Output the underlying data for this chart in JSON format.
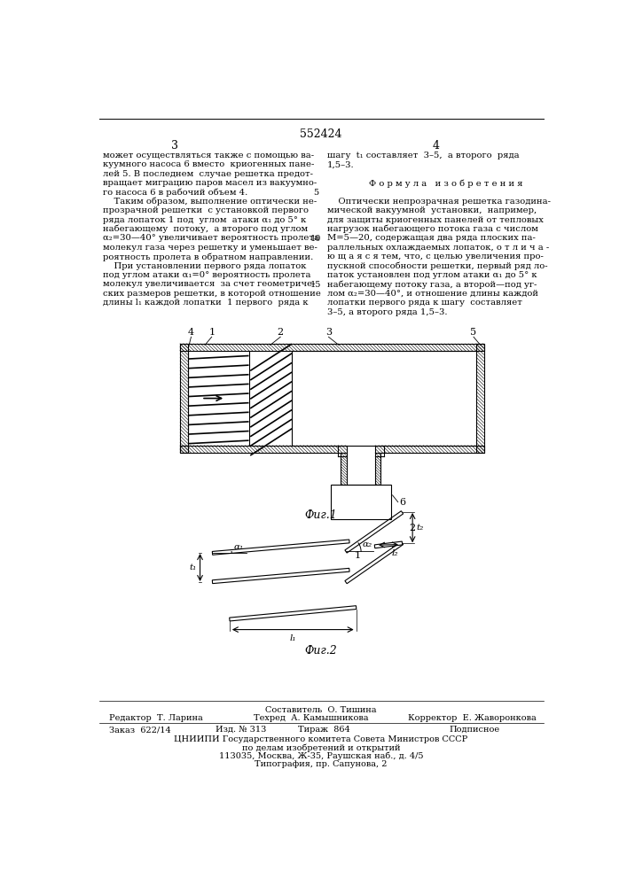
{
  "patent_number": "552424",
  "page_left": "3",
  "page_right": "4",
  "left_text_lines": [
    "может осуществляться также с помощью ва-",
    "куумного насоса 6 вместо  криогенных пане-",
    "лей 5. В последнем  случае решетка предот-",
    "вращает миграцию паров масел из вакуумно-",
    "го насоса 6 в рабочий объем 4.",
    "    Таким образом, выполнение оптически не-",
    "прозрачной решетки  с установкой первого",
    "ряда лопаток 1 под  углом  атаки α₁ до 5° к",
    "набегающему  потоку,  а второго под углом",
    "α₂=30—40° увеличивает вероятность пролета",
    "молекул газа через решетку и уменьшает ве-",
    "роятность пролета в обратном направлении.",
    "    При установлении первого ряда лопаток",
    "под углом атаки α₁=0° вероятность пролета",
    "молекул увеличивается  за счет геометриче-",
    "ских размеров решетки, в которой отношение",
    "длины l₁ каждой лопатки  1 первого  ряда к"
  ],
  "right_text_lines": [
    "шагу  t₁ составляет  3–5,  а второго  ряда",
    "1,5–3.",
    "",
    "               Ф о р м у л а   и з о б р е т е н и я",
    "",
    "    Оптически непрозрачная решетка газодина-",
    "мической вакуумной  установки,  например,",
    "для защиты криогенных панелей от тепловых",
    "нагрузок набегающего потока газа с числом",
    "M=5—20, содержащая два ряда плоских па-",
    "раллельных охлаждаемых лопаток, о т л и ч а -",
    "ю щ а я с я тем, что, с целью увеличения про-",
    "пускной способности решетки, первый ряд ло-",
    "паток установлен под углом атаки α₁ до 5° к",
    "набегающему потоку газа, а второй—под уг-",
    "лом α₂=30—40°, и отношение длины каждой",
    "лопатки первого ряда к шагу  составляет",
    "3–5, а второго ряда 1,5–3."
  ],
  "line_num_5_row": 4,
  "line_num_10_row": 9,
  "line_num_15_row": 14,
  "fig1_label": "Фиг.1",
  "fig2_label": "Фиг.2",
  "footer_composer": "Составитель  О. Тишина",
  "footer_editor": "Редактор  Т. Ларина",
  "footer_tech": "Техред  А. Камышникова",
  "footer_corrector": "Корректор  Е. Жаворонкова",
  "footer_order": "Заказ  622/14",
  "footer_issue": "Изд. № 313",
  "footer_copies": "Тираж  864",
  "footer_subscription": "Подписное",
  "footer_org": "ЦНИИПИ Государственного комитета Совета Министров СССР",
  "footer_dept": "по делам изобретений и открытий",
  "footer_address": "113035, Москва, Ж-35, Раушская наб., д. 4/5",
  "footer_print": "Типография, пр. Сапунова, 2",
  "bg_color": "#ffffff"
}
